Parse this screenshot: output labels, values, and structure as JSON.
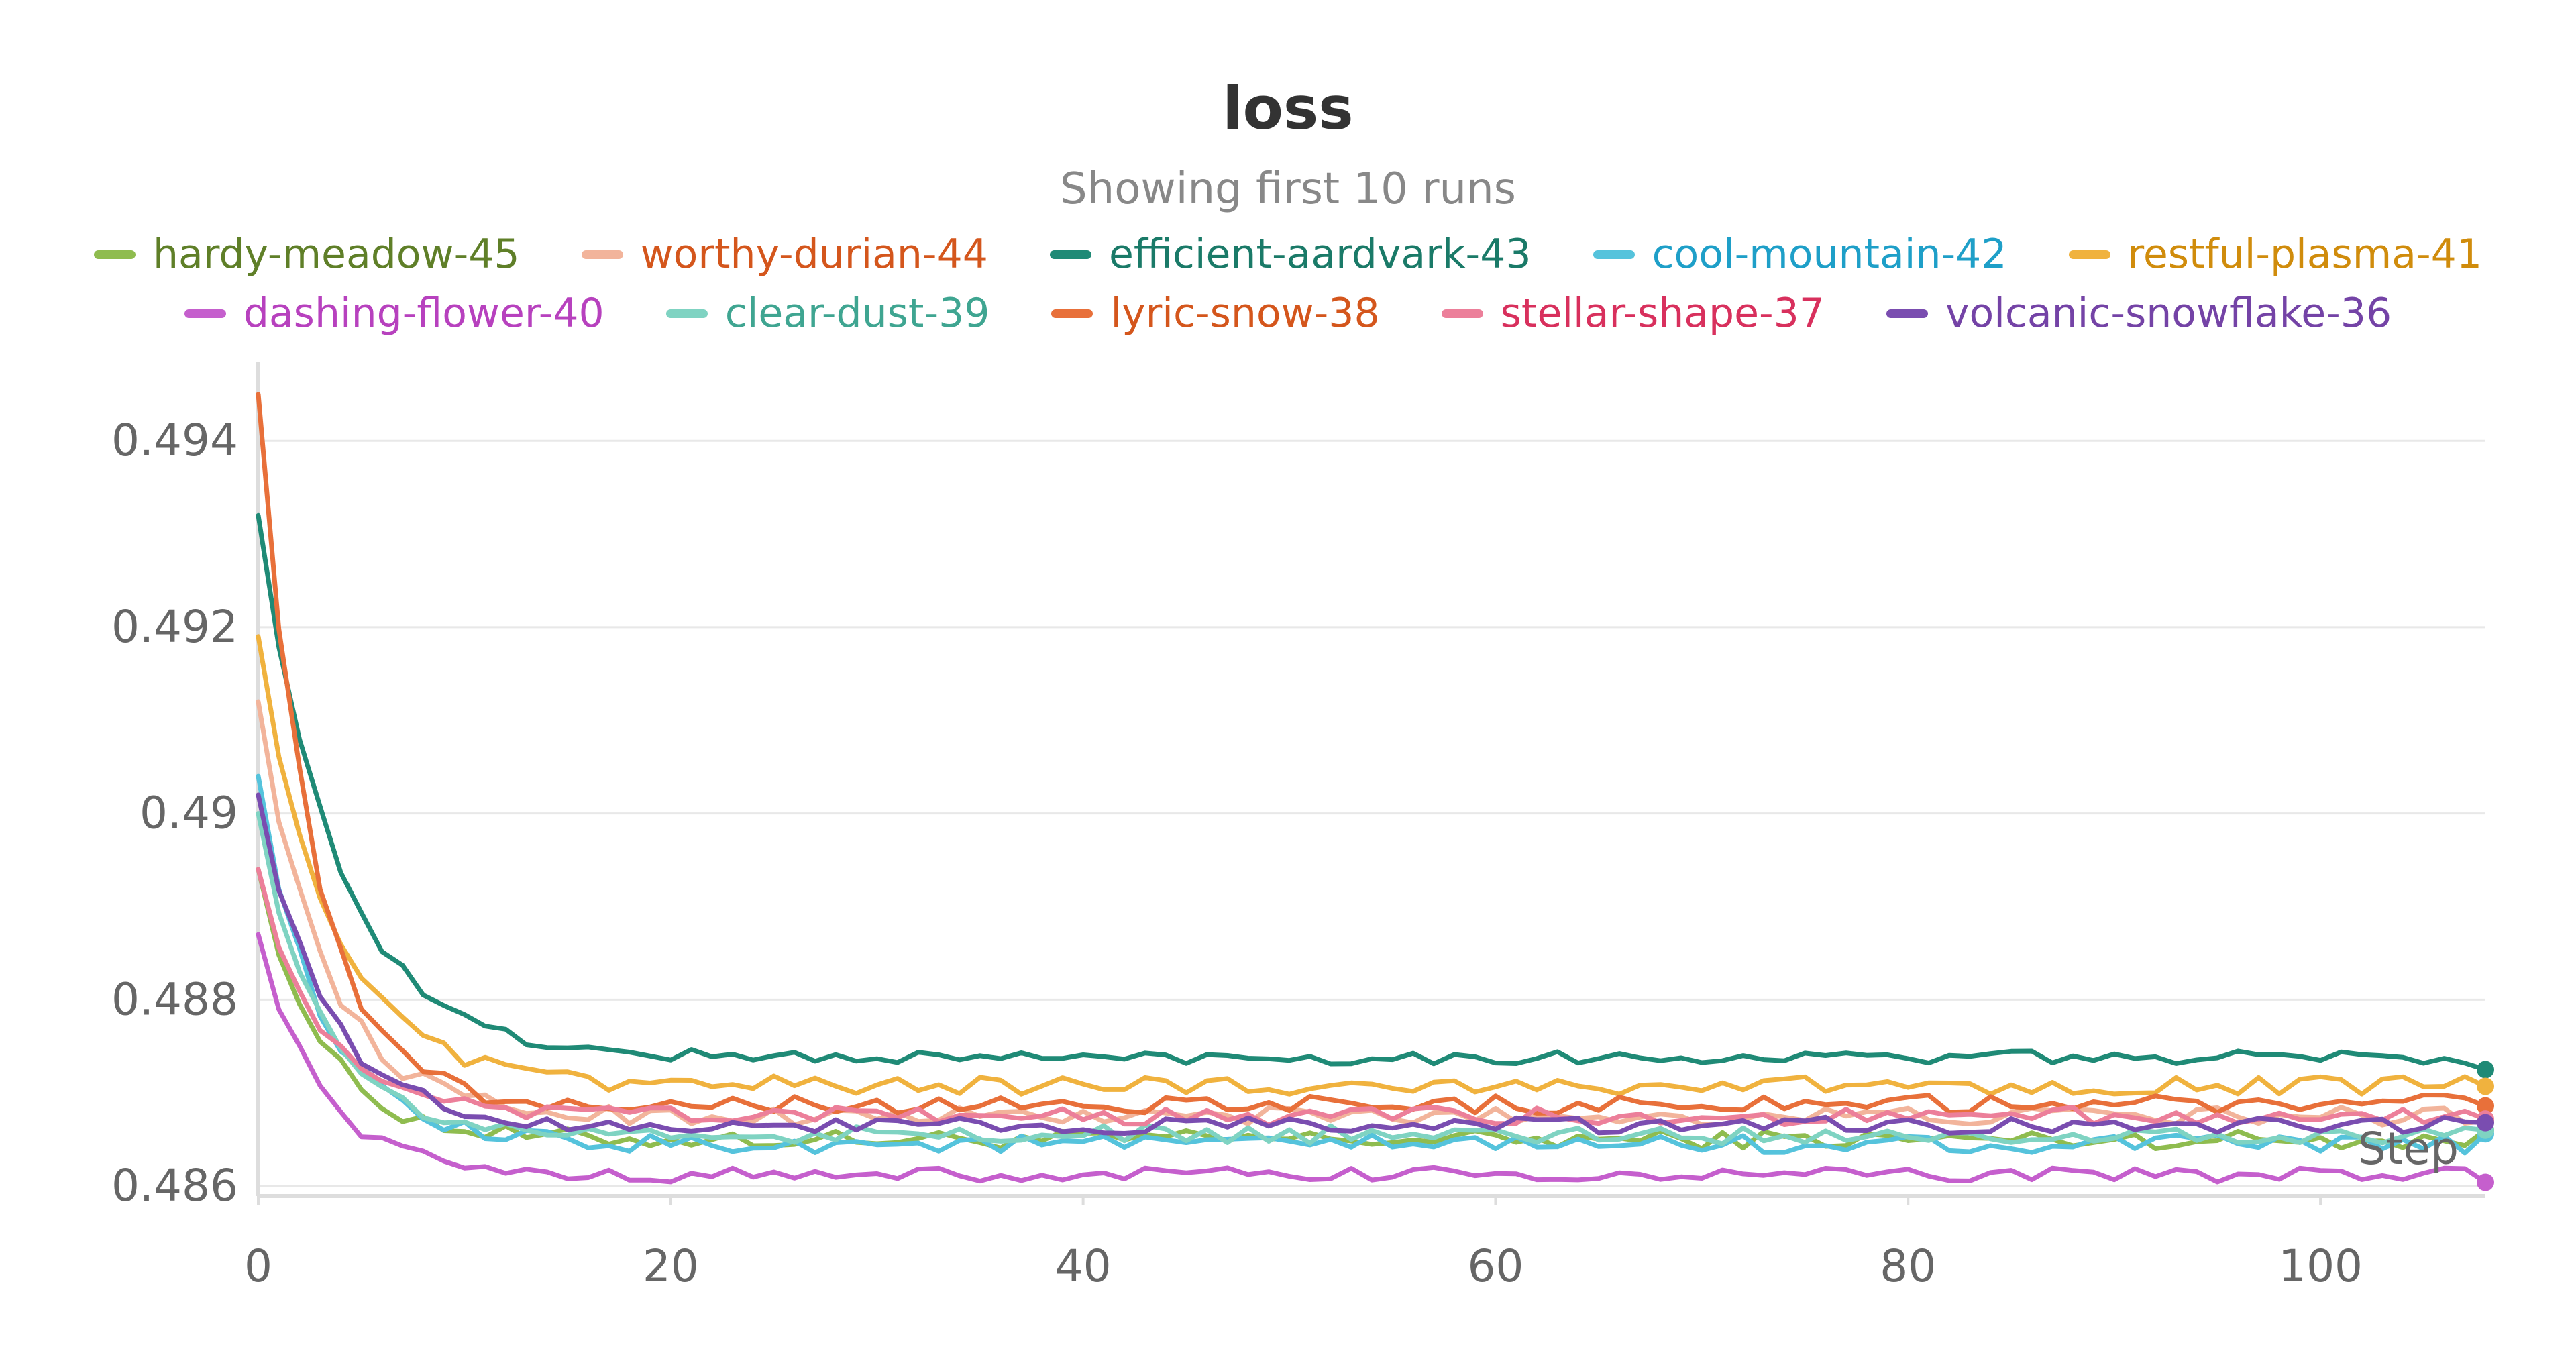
{
  "chart_data": {
    "type": "line",
    "title": "loss",
    "subtitle": "Showing first 10 runs",
    "xlabel": "Step",
    "ylabel": "",
    "xlim": [
      0,
      108
    ],
    "ylim": [
      0.48595,
      0.4947
    ],
    "x_ticks": [
      0,
      20,
      40,
      60,
      80,
      100
    ],
    "y_ticks": [
      0.486,
      0.488,
      0.49,
      0.492,
      0.494
    ],
    "y_tick_labels": [
      "0.486",
      "0.488",
      "0.49",
      "0.492",
      "0.494"
    ],
    "grid": true,
    "legend_position": "top",
    "series": [
      {
        "name": "hardy-meadow-45",
        "color": "#8fbc4f",
        "label_color": "#5f7f28",
        "start": 0.4894,
        "plateau": 0.4865,
        "decay": 3.0,
        "noise": 0.0001,
        "end": 0.4866
      },
      {
        "name": "worthy-durian-44",
        "color": "#f2b49b",
        "label_color": "#d4561c",
        "start": 0.4912,
        "plateau": 0.48675,
        "decay": 3.2,
        "noise": 0.0001,
        "end": 0.4867
      },
      {
        "name": "efficient-aardvark-43",
        "color": "#1f8a76",
        "label_color": "#1a7a68",
        "start": 0.4932,
        "plateau": 0.48738,
        "decay": 3.8,
        "noise": 7e-05,
        "end": 0.48725
      },
      {
        "name": "cool-mountain-42",
        "color": "#55c3dc",
        "label_color": "#1e9fc8",
        "start": 0.4904,
        "plateau": 0.48645,
        "decay": 3.0,
        "noise": 0.0001,
        "end": 0.48656
      },
      {
        "name": "restful-plasma-41",
        "color": "#f0b23e",
        "label_color": "#d08c0c",
        "start": 0.4919,
        "plateau": 0.48708,
        "decay": 3.5,
        "noise": 0.0001,
        "end": 0.48707
      },
      {
        "name": "dashing-flower-40",
        "color": "#c55fcd",
        "label_color": "#b741be",
        "start": 0.4887,
        "plateau": 0.48612,
        "decay": 3.0,
        "noise": 8e-05,
        "end": 0.48604
      },
      {
        "name": "clear-dust-39",
        "color": "#7fd3c2",
        "label_color": "#3fa591",
        "start": 0.49,
        "plateau": 0.48655,
        "decay": 3.0,
        "noise": 0.0001,
        "end": 0.4866
      },
      {
        "name": "lyric-snow-38",
        "color": "#e8703a",
        "label_color": "#d4561c",
        "start": 0.4945,
        "plateau": 0.48688,
        "decay": 2.6,
        "noise": 0.0001,
        "end": 0.48686
      },
      {
        "name": "stellar-shape-37",
        "color": "#ec7f9a",
        "label_color": "#d8305d",
        "start": 0.4894,
        "plateau": 0.48675,
        "decay": 3.0,
        "noise": 0.0001,
        "end": 0.48672
      },
      {
        "name": "volcanic-snowflake-36",
        "color": "#7a4db0",
        "label_color": "#7443a6",
        "start": 0.4902,
        "plateau": 0.48665,
        "decay": 3.2,
        "noise": 9e-05,
        "end": 0.48668
      }
    ]
  }
}
